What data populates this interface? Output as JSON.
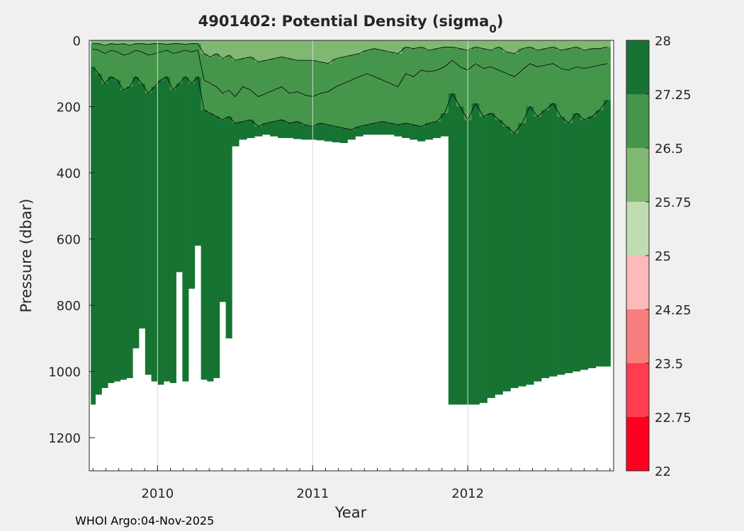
{
  "chart_data": {
    "type": "heatmap",
    "title": "4901402: Potential Density (sigma",
    "title_subscript": "0",
    "title_suffix": ")",
    "xlabel": "Year",
    "ylabel": "Pressure (dbar)",
    "xlim": [
      2009.56,
      2012.94
    ],
    "ylim": [
      0,
      1300
    ],
    "y_reversed": true,
    "x_ticks": [
      "2010",
      "2011",
      "2012"
    ],
    "x_tick_values": [
      2010,
      2011,
      2012
    ],
    "y_ticks": [
      "0",
      "200",
      "400",
      "600",
      "800",
      "1000",
      "1200"
    ],
    "y_tick_values": [
      0,
      200,
      400,
      600,
      800,
      1000,
      1200
    ],
    "grid": "vertical",
    "colorbar": {
      "ticks": [
        "22",
        "22.75",
        "23.5",
        "24.25",
        "25",
        "25.75",
        "26.5",
        "27.25",
        "28"
      ],
      "levels": [
        22,
        22.75,
        23.5,
        24.25,
        25,
        25.75,
        26.5,
        27.25,
        28
      ],
      "colors": [
        "#ff0022",
        "#ff3d4e",
        "#f87d7d",
        "#fcbab8",
        "#c1dcb0",
        "#80b873",
        "#45954a",
        "#167332"
      ]
    },
    "profiles": {
      "time": [
        2009.58,
        2009.62,
        2009.66,
        2009.7,
        2009.74,
        2009.78,
        2009.82,
        2009.86,
        2009.9,
        2009.94,
        2009.98,
        2010.02,
        2010.06,
        2010.1,
        2010.14,
        2010.18,
        2010.22,
        2010.26,
        2010.3,
        2010.34,
        2010.38,
        2010.42,
        2010.46,
        2010.5,
        2010.55,
        2010.6,
        2010.65,
        2010.7,
        2010.75,
        2010.8,
        2010.85,
        2010.9,
        2010.95,
        2011.0,
        2011.05,
        2011.1,
        2011.15,
        2011.2,
        2011.25,
        2011.3,
        2011.35,
        2011.4,
        2011.45,
        2011.5,
        2011.55,
        2011.6,
        2011.65,
        2011.7,
        2011.75,
        2011.8,
        2011.85,
        2011.9,
        2011.95,
        2012.0,
        2012.05,
        2012.1,
        2012.15,
        2012.2,
        2012.25,
        2012.3,
        2012.35,
        2012.4,
        2012.45,
        2012.5,
        2012.55,
        2012.6,
        2012.65,
        2012.7,
        2012.75,
        2012.8,
        2012.85,
        2012.9
      ],
      "max_pressure": [
        1100,
        1070,
        1050,
        1035,
        1030,
        1025,
        1020,
        930,
        870,
        1010,
        1030,
        1040,
        1030,
        1035,
        700,
        1030,
        750,
        620,
        1025,
        1030,
        1020,
        790,
        900,
        320,
        300,
        295,
        290,
        285,
        290,
        295,
        295,
        298,
        300,
        300,
        302,
        305,
        308,
        310,
        300,
        290,
        285,
        285,
        285,
        285,
        290,
        295,
        300,
        305,
        300,
        295,
        290,
        1100,
        1100,
        1100,
        1100,
        1095,
        1080,
        1070,
        1060,
        1050,
        1045,
        1040,
        1030,
        1020,
        1015,
        1010,
        1005,
        1000,
        995,
        990,
        985,
        985
      ],
      "iso_25_75": [
        10,
        10,
        15,
        10,
        12,
        10,
        15,
        10,
        10,
        12,
        10,
        10,
        12,
        10,
        10,
        12,
        10,
        10,
        40,
        50,
        40,
        55,
        45,
        60,
        55,
        50,
        65,
        60,
        55,
        50,
        55,
        60,
        60,
        60,
        65,
        70,
        55,
        50,
        45,
        40,
        30,
        25,
        30,
        35,
        40,
        20,
        25,
        20,
        30,
        25,
        20,
        20,
        25,
        30,
        20,
        25,
        30,
        20,
        35,
        40,
        25,
        20,
        30,
        25,
        20,
        30,
        25,
        20,
        30,
        25,
        25,
        20
      ],
      "iso_26_5": [
        25,
        30,
        40,
        30,
        35,
        45,
        40,
        30,
        35,
        45,
        40,
        35,
        30,
        40,
        35,
        30,
        35,
        30,
        120,
        130,
        140,
        160,
        150,
        170,
        140,
        150,
        170,
        160,
        150,
        140,
        160,
        155,
        165,
        170,
        160,
        155,
        140,
        130,
        120,
        110,
        100,
        110,
        120,
        130,
        140,
        100,
        110,
        90,
        95,
        90,
        80,
        60,
        80,
        90,
        70,
        85,
        80,
        90,
        100,
        110,
        90,
        70,
        80,
        75,
        70,
        85,
        90,
        80,
        85,
        80,
        75,
        70
      ],
      "iso_27_25": [
        80,
        100,
        130,
        110,
        120,
        150,
        140,
        110,
        130,
        160,
        140,
        120,
        110,
        150,
        130,
        110,
        130,
        110,
        210,
        220,
        230,
        240,
        230,
        250,
        245,
        240,
        260,
        250,
        245,
        240,
        250,
        245,
        255,
        260,
        250,
        255,
        260,
        265,
        270,
        260,
        255,
        250,
        245,
        250,
        255,
        250,
        255,
        260,
        250,
        245,
        220,
        160,
        200,
        240,
        190,
        230,
        220,
        240,
        260,
        280,
        250,
        200,
        230,
        210,
        190,
        230,
        250,
        220,
        240,
        230,
        210,
        180
      ]
    }
  },
  "footer_text": "WHOI Argo:04-Nov-2025"
}
